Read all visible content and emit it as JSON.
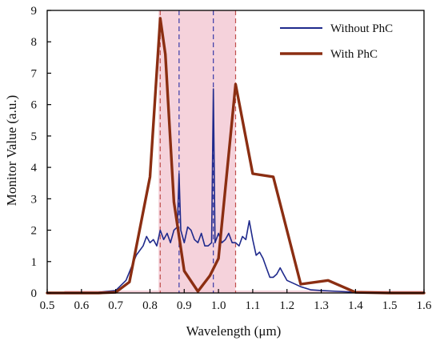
{
  "chart_data": {
    "type": "line",
    "title": "",
    "xlabel": "Wavelength (μm)",
    "ylabel": "Monitor Value (a.u.)",
    "xlim": [
      0.5,
      1.6
    ],
    "ylim": [
      0,
      9
    ],
    "x_ticks": [
      "0.5",
      "0.6",
      "0.7",
      "0.8",
      "0.9",
      "1.0",
      "1.1",
      "1.2",
      "1.3",
      "1.4",
      "1.5",
      "1.6"
    ],
    "y_ticks": [
      "0",
      "1",
      "2",
      "3",
      "4",
      "5",
      "6",
      "7",
      "8",
      "9"
    ],
    "grid": false,
    "legend_position": "top-right",
    "shaded_bands": [
      {
        "x_start": 0.825,
        "x_end": 1.05,
        "color": "#f2c3cf"
      },
      {
        "x_start": 0.55,
        "x_end": 1.6,
        "y_max": 0.08,
        "color": "#f2c3cf"
      }
    ],
    "dashed_lines": {
      "color_red": "#c0504d",
      "color_blue": "#3a3aa8",
      "red_x": [
        0.83,
        1.05
      ],
      "blue_x": [
        0.885,
        0.985
      ]
    },
    "series": [
      {
        "name": "Without  PhC",
        "color": "#1f2a8c",
        "width": 1.6,
        "x": [
          0.5,
          0.6,
          0.65,
          0.7,
          0.73,
          0.76,
          0.78,
          0.79,
          0.8,
          0.81,
          0.82,
          0.83,
          0.84,
          0.85,
          0.86,
          0.87,
          0.88,
          0.885,
          0.89,
          0.9,
          0.91,
          0.92,
          0.93,
          0.94,
          0.95,
          0.96,
          0.97,
          0.98,
          0.985,
          0.99,
          1.0,
          1.01,
          1.02,
          1.03,
          1.04,
          1.05,
          1.06,
          1.07,
          1.08,
          1.09,
          1.1,
          1.11,
          1.12,
          1.13,
          1.14,
          1.15,
          1.16,
          1.17,
          1.18,
          1.19,
          1.2,
          1.22,
          1.24,
          1.27,
          1.3,
          1.35,
          1.4,
          1.5,
          1.6
        ],
        "values": [
          0,
          0,
          0.02,
          0.08,
          0.4,
          1.2,
          1.5,
          1.8,
          1.6,
          1.7,
          1.5,
          2.0,
          1.7,
          1.9,
          1.6,
          2.0,
          2.1,
          3.8,
          2.0,
          1.6,
          2.1,
          2.0,
          1.7,
          1.6,
          1.9,
          1.5,
          1.5,
          1.6,
          6.5,
          1.6,
          1.9,
          1.6,
          1.7,
          1.9,
          1.6,
          1.6,
          1.5,
          1.8,
          1.7,
          2.3,
          1.7,
          1.2,
          1.3,
          1.1,
          0.8,
          0.5,
          0.5,
          0.6,
          0.8,
          0.6,
          0.4,
          0.3,
          0.2,
          0.1,
          0.08,
          0.05,
          0.02,
          0,
          0
        ]
      },
      {
        "name": "With  PhC",
        "color": "#8b2e12",
        "width": 3.4,
        "x": [
          0.5,
          0.65,
          0.7,
          0.74,
          0.8,
          0.83,
          0.845,
          0.87,
          0.9,
          0.94,
          0.975,
          1.0,
          1.05,
          1.1,
          1.16,
          1.24,
          1.32,
          1.4,
          1.5,
          1.6
        ],
        "values": [
          0,
          0,
          0.02,
          0.35,
          3.7,
          8.75,
          7.6,
          2.9,
          0.7,
          0.05,
          0.55,
          1.1,
          6.65,
          3.8,
          3.7,
          0.28,
          0.4,
          0.02,
          0,
          0
        ]
      }
    ]
  }
}
